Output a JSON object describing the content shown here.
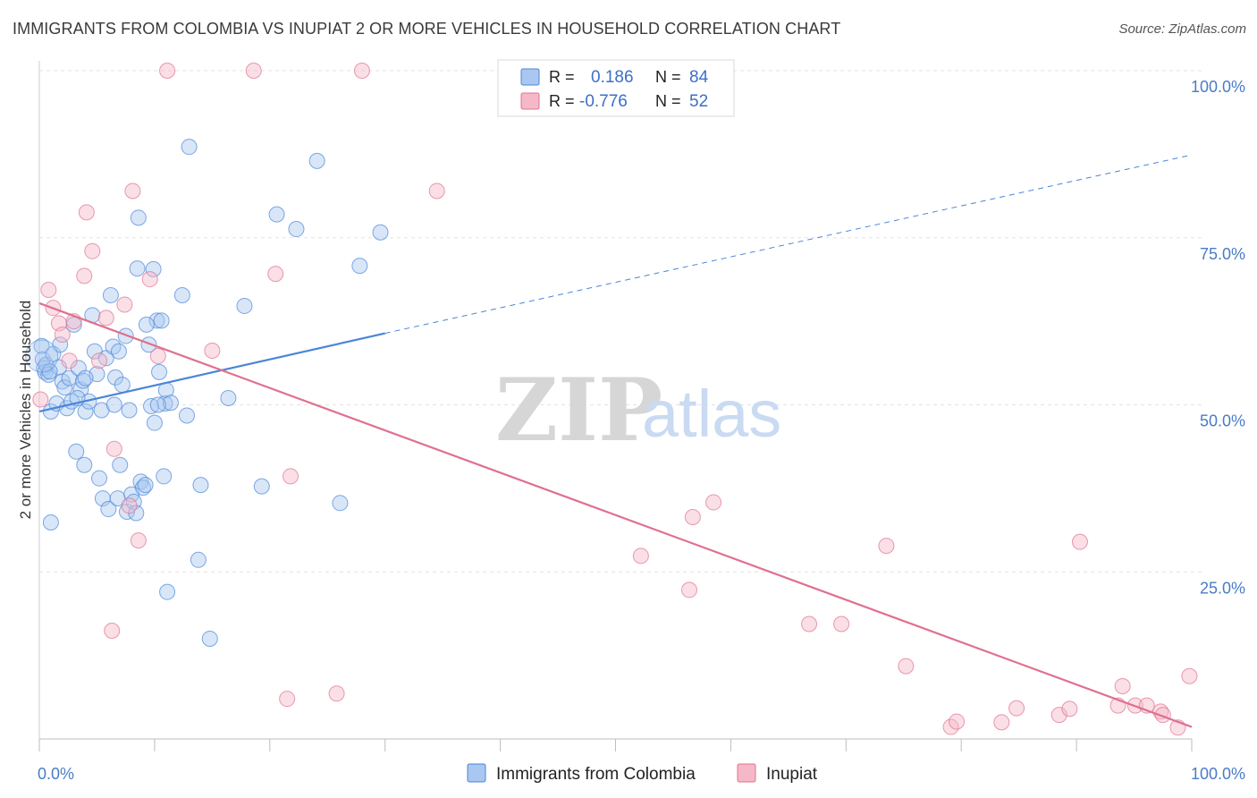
{
  "title": "IMMIGRANTS FROM COLOMBIA VS INUPIAT 2 OR MORE VEHICLES IN HOUSEHOLD CORRELATION CHART",
  "source": "Source: ZipAtlas.com",
  "watermark": {
    "zip": "ZIP",
    "atlas": "atlas"
  },
  "colors": {
    "blue": "#4a86d8",
    "blue_fill": "#a9c7f0",
    "pink": "#e0708f",
    "pink_fill": "#f5b8c8",
    "grid": "#e3e3e3",
    "axis_text": "#4a7cc7"
  },
  "legend": {
    "r_label": "R =",
    "n_label": "N =",
    "rows": [
      {
        "series": "blue",
        "r": "0.186",
        "n": "84"
      },
      {
        "series": "pink",
        "r": "-0.776",
        "n": "52"
      }
    ]
  },
  "bottom_legend": [
    {
      "series": "blue",
      "label": "Immigrants from Colombia"
    },
    {
      "series": "pink",
      "label": "Inupiat"
    }
  ],
  "chart_data": {
    "type": "scatter",
    "title": "IMMIGRANTS FROM COLOMBIA VS INUPIAT 2 OR MORE VEHICLES IN HOUSEHOLD CORRELATION CHART",
    "xlabel": "",
    "ylabel": "2 or more Vehicles in Household",
    "xlim": [
      0,
      100
    ],
    "ylim": [
      0,
      100
    ],
    "x_tick_labels": [
      "0.0%",
      "100.0%"
    ],
    "y_ticks": [
      25,
      50,
      75,
      100
    ],
    "y_tick_labels": [
      "25.0%",
      "50.0%",
      "75.0%",
      "100.0%"
    ],
    "grid": true,
    "legend_position": "top-center",
    "series": [
      {
        "name": "Immigrants from Colombia",
        "color": "#4a86d8",
        "trend": {
          "x0": 0,
          "y0": 49.0,
          "x1": 30,
          "y1": 60.7,
          "dashed_to_x": 100,
          "dashed_to_y": 87.4
        },
        "points": [
          [
            0.2,
            58.8
          ],
          [
            0.3,
            56.8
          ],
          [
            0.4,
            55.5
          ],
          [
            0.5,
            54.9
          ],
          [
            0.6,
            56.0
          ],
          [
            0.8,
            54.5
          ],
          [
            1.0,
            49.0
          ],
          [
            1.2,
            57.6
          ],
          [
            1.5,
            50.2
          ],
          [
            1.7,
            55.6
          ],
          [
            1.8,
            59.0
          ],
          [
            2.0,
            53.5
          ],
          [
            2.2,
            52.6
          ],
          [
            2.4,
            49.5
          ],
          [
            2.6,
            54.0
          ],
          [
            2.8,
            50.5
          ],
          [
            3.0,
            62.0
          ],
          [
            3.2,
            43.0
          ],
          [
            3.4,
            55.5
          ],
          [
            3.6,
            52.3
          ],
          [
            3.8,
            53.6
          ],
          [
            3.9,
            41.0
          ],
          [
            4.0,
            49.0
          ],
          [
            4.3,
            50.5
          ],
          [
            4.6,
            63.4
          ],
          [
            4.8,
            58.0
          ],
          [
            5.0,
            54.6
          ],
          [
            5.2,
            39.0
          ],
          [
            5.4,
            49.2
          ],
          [
            5.5,
            36.0
          ],
          [
            5.8,
            57.0
          ],
          [
            6.0,
            34.4
          ],
          [
            6.2,
            66.4
          ],
          [
            6.4,
            58.7
          ],
          [
            6.5,
            50.0
          ],
          [
            6.6,
            54.1
          ],
          [
            6.8,
            36.0
          ],
          [
            6.9,
            58.0
          ],
          [
            7.0,
            41.0
          ],
          [
            7.2,
            53.0
          ],
          [
            7.5,
            60.3
          ],
          [
            7.6,
            34.0
          ],
          [
            7.8,
            49.2
          ],
          [
            8.0,
            36.6
          ],
          [
            8.2,
            35.5
          ],
          [
            8.4,
            33.8
          ],
          [
            8.5,
            70.4
          ],
          [
            8.6,
            78.0
          ],
          [
            8.8,
            38.5
          ],
          [
            9.0,
            37.6
          ],
          [
            9.2,
            38.0
          ],
          [
            9.5,
            59.0
          ],
          [
            9.7,
            49.8
          ],
          [
            9.9,
            70.3
          ],
          [
            10.0,
            47.3
          ],
          [
            10.2,
            62.6
          ],
          [
            10.4,
            54.9
          ],
          [
            10.6,
            62.6
          ],
          [
            10.8,
            39.3
          ],
          [
            10.9,
            50.2
          ],
          [
            11.0,
            52.2
          ],
          [
            11.1,
            22.0
          ],
          [
            11.4,
            50.3
          ],
          [
            12.4,
            66.4
          ],
          [
            12.8,
            48.4
          ],
          [
            13.0,
            88.6
          ],
          [
            13.8,
            26.8
          ],
          [
            14.0,
            38.0
          ],
          [
            14.8,
            15.0
          ],
          [
            16.4,
            51.0
          ],
          [
            17.8,
            64.8
          ],
          [
            19.3,
            37.8
          ],
          [
            20.6,
            78.5
          ],
          [
            22.3,
            76.3
          ],
          [
            24.1,
            86.5
          ],
          [
            26.1,
            35.3
          ],
          [
            27.8,
            70.8
          ],
          [
            29.6,
            75.8
          ],
          [
            1.0,
            32.4
          ],
          [
            4.0,
            54.0
          ],
          [
            3.3,
            51.0
          ],
          [
            0.9,
            55.0
          ],
          [
            9.3,
            62.0
          ],
          [
            10.3,
            50.0
          ]
        ]
      },
      {
        "name": "Inupiat",
        "color": "#e0708f",
        "trend": {
          "x0": 0,
          "y0": 65.2,
          "x1": 100,
          "y1": 1.8
        },
        "points": [
          [
            0.1,
            50.8
          ],
          [
            0.8,
            67.2
          ],
          [
            1.2,
            64.5
          ],
          [
            1.7,
            62.2
          ],
          [
            2.0,
            60.5
          ],
          [
            2.6,
            56.6
          ],
          [
            3.0,
            62.5
          ],
          [
            3.9,
            69.3
          ],
          [
            4.1,
            78.8
          ],
          [
            4.6,
            73.0
          ],
          [
            5.2,
            56.6
          ],
          [
            5.8,
            63.0
          ],
          [
            6.3,
            16.2
          ],
          [
            6.5,
            43.4
          ],
          [
            7.4,
            65.0
          ],
          [
            7.8,
            34.9
          ],
          [
            8.1,
            82.0
          ],
          [
            8.6,
            29.7
          ],
          [
            9.6,
            68.8
          ],
          [
            10.3,
            57.3
          ],
          [
            11.1,
            100.0
          ],
          [
            15.0,
            58.1
          ],
          [
            18.6,
            100.0
          ],
          [
            20.5,
            69.6
          ],
          [
            21.5,
            6.0
          ],
          [
            21.8,
            39.3
          ],
          [
            25.8,
            6.8
          ],
          [
            28.0,
            100.0
          ],
          [
            34.5,
            82.0
          ],
          [
            52.2,
            27.4
          ],
          [
            56.4,
            22.3
          ],
          [
            56.7,
            33.2
          ],
          [
            58.5,
            35.4
          ],
          [
            66.8,
            17.2
          ],
          [
            69.6,
            17.2
          ],
          [
            73.5,
            28.9
          ],
          [
            75.2,
            10.9
          ],
          [
            79.1,
            1.8
          ],
          [
            79.6,
            2.6
          ],
          [
            83.5,
            2.5
          ],
          [
            84.8,
            4.6
          ],
          [
            88.5,
            3.6
          ],
          [
            89.4,
            4.5
          ],
          [
            90.3,
            29.5
          ],
          [
            94.0,
            7.9
          ],
          [
            95.1,
            5.0
          ],
          [
            96.1,
            5.0
          ],
          [
            97.3,
            4.1
          ],
          [
            97.5,
            3.6
          ],
          [
            98.8,
            1.7
          ],
          [
            99.8,
            9.4
          ],
          [
            93.6,
            5.0
          ]
        ]
      }
    ]
  }
}
